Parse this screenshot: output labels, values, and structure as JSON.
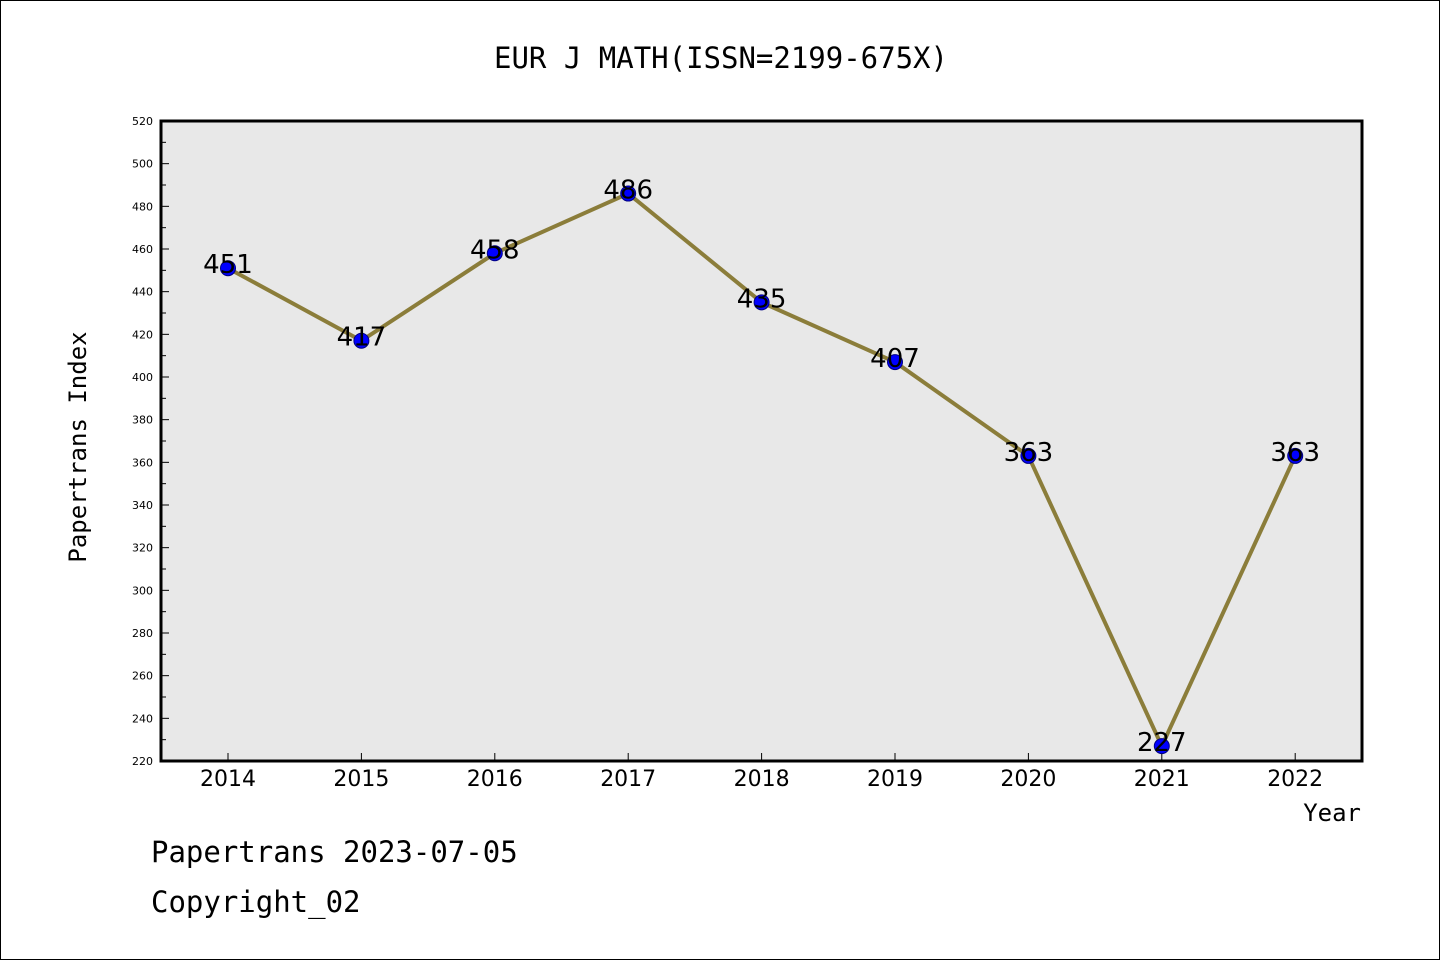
{
  "chart_data": {
    "type": "line",
    "title": "EUR J MATH(ISSN=2199-675X)",
    "xlabel": "Year",
    "ylabel": "Papertrans Index",
    "categories": [
      "2014",
      "2015",
      "2016",
      "2017",
      "2018",
      "2019",
      "2020",
      "2021",
      "2022"
    ],
    "series": [
      {
        "values": [
          451,
          417,
          458,
          486,
          435,
          407,
          363,
          227,
          363
        ],
        "data_labels": [
          "451",
          "417",
          "458",
          "486",
          "435",
          "407",
          "363",
          "227",
          "363"
        ]
      }
    ],
    "ylim": [
      220,
      520
    ],
    "y_ticks": [
      "220",
      "240",
      "260",
      "280",
      "300",
      "320",
      "340",
      "360",
      "380",
      "400",
      "420",
      "440",
      "460",
      "480",
      "500",
      "520"
    ],
    "grid": false,
    "legend": "none",
    "colors": {
      "line": "#8B7D3A",
      "marker": "#0000FF",
      "marker_edge": "#000080",
      "plot_background": "#E8E8E8"
    }
  },
  "footer": {
    "line1": "Papertrans 2023-07-05",
    "line2": "Copyright_02"
  }
}
